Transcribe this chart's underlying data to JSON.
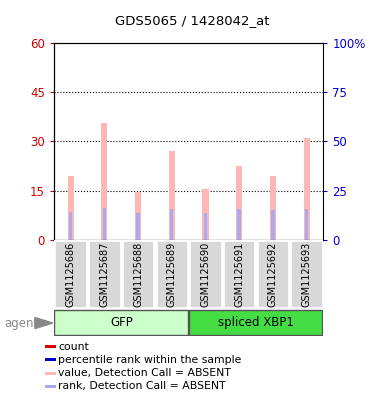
{
  "title": "GDS5065 / 1428042_at",
  "samples": [
    "GSM1125686",
    "GSM1125687",
    "GSM1125688",
    "GSM1125689",
    "GSM1125690",
    "GSM1125691",
    "GSM1125692",
    "GSM1125693"
  ],
  "pink_values": [
    19.5,
    35.5,
    14.5,
    27.0,
    15.5,
    22.5,
    19.5,
    31.0
  ],
  "blue_rank_values_scaled": [
    14.0,
    16.0,
    13.5,
    15.5,
    13.5,
    15.5,
    15.0,
    15.5
  ],
  "ylim_left": [
    0,
    60
  ],
  "ylim_right": [
    0,
    100
  ],
  "yticks_left": [
    0,
    15,
    30,
    45,
    60
  ],
  "yticks_right": [
    0,
    25,
    50,
    75,
    100
  ],
  "yticklabels_right": [
    "0",
    "25",
    "50",
    "75",
    "100%"
  ],
  "pink_color": "#ffb6b6",
  "blue_color": "#aaaaee",
  "left_tick_color": "#cc0000",
  "right_tick_color": "#0000cc",
  "gfp_light_color": "#ccffcc",
  "xbp1_green_color": "#44dd44",
  "group_labels": [
    "GFP",
    "spliced XBP1"
  ],
  "legend_items": [
    {
      "label": "count",
      "color": "#dd0000"
    },
    {
      "label": "percentile rank within the sample",
      "color": "#0000cc"
    },
    {
      "label": "value, Detection Call = ABSENT",
      "color": "#ffb6b6"
    },
    {
      "label": "rank, Detection Call = ABSENT",
      "color": "#aaaaee"
    }
  ]
}
